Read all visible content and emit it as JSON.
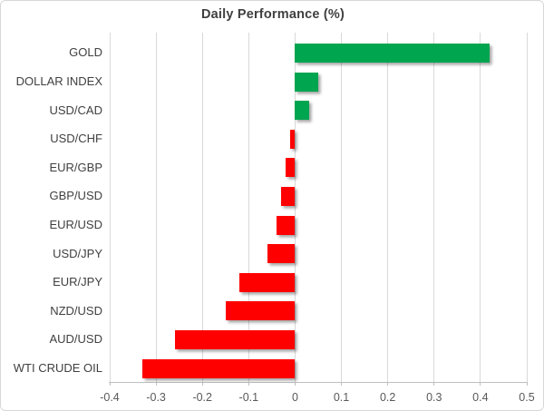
{
  "chart_data": {
    "type": "bar",
    "orientation": "horizontal",
    "title": "Daily Performance (%)",
    "categories": [
      "GOLD",
      "DOLLAR INDEX",
      "USD/CAD",
      "USD/CHF",
      "EUR/GBP",
      "GBP/USD",
      "EUR/USD",
      "USD/JPY",
      "EUR/JPY",
      "NZD/USD",
      "AUD/USD",
      "WTI CRUDE OIL"
    ],
    "values": [
      0.42,
      0.05,
      0.03,
      -0.01,
      -0.02,
      -0.03,
      -0.04,
      -0.06,
      -0.12,
      -0.15,
      -0.26,
      -0.33
    ],
    "xlabel": "",
    "ylabel": "",
    "xlim": [
      -0.4,
      0.5
    ],
    "x_ticks": [
      -0.4,
      -0.3,
      -0.2,
      -0.1,
      0,
      0.1,
      0.2,
      0.3,
      0.4,
      0.5
    ],
    "x_tick_labels": [
      "-0.4",
      "-0.3",
      "-0.2",
      "-0.1",
      "0",
      "0.1",
      "0.2",
      "0.3",
      "0.4",
      "0.5"
    ],
    "grid": "vertical-gridlines-on",
    "legend": "none",
    "colors": {
      "positive_bar": "#00a550",
      "negative_bar": "#ff0000",
      "title_text": "#3f3f3f",
      "category_text": "#404040",
      "tick_text": "#595959",
      "gridline": "#d9d9d9",
      "axis_line": "#bfbfbf",
      "chart_border": "#d7d7d7",
      "background": "#ffffff"
    }
  }
}
